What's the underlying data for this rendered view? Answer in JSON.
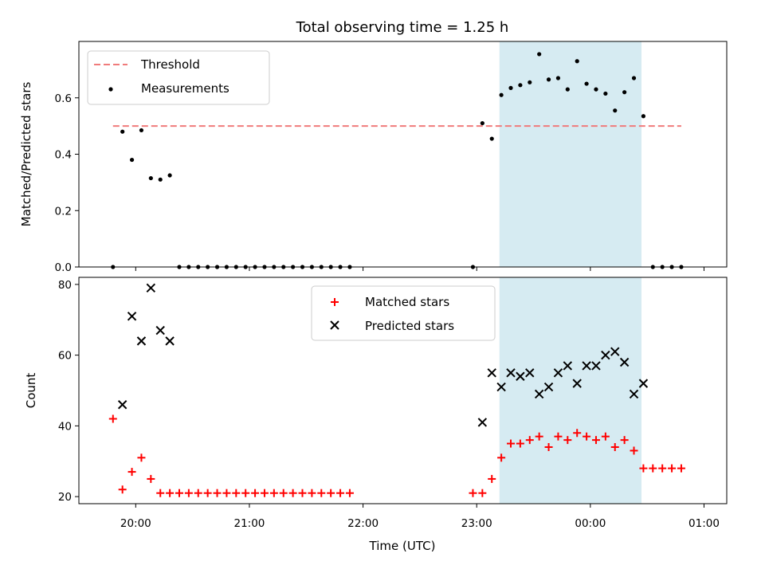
{
  "chart_data": {
    "title": "Total observing time = 1.25 h",
    "xlabel": "Time (UTC)",
    "x_tick_labels": [
      "20:00",
      "21:00",
      "22:00",
      "23:00",
      "00:00",
      "01:00"
    ],
    "observing_window": {
      "start": "23:12",
      "end": "00:27",
      "color": "#add8e6"
    },
    "panels": [
      {
        "type": "scatter",
        "ylabel": "Matched/Predicted stars",
        "ylim": [
          0,
          0.8
        ],
        "y_ticks": [
          "0.0",
          "0.2",
          "0.4",
          "0.6"
        ],
        "legend_position": "top-left",
        "threshold": {
          "label": "Threshold",
          "value": 0.5,
          "x_start": "19:48",
          "x_end": "00:48",
          "color": "#f07b7b"
        },
        "series": [
          {
            "name": "Measurements",
            "marker": "dot",
            "color": "#000000",
            "x": [
              "19:48",
              "19:53",
              "19:58",
              "20:03",
              "20:08",
              "20:13",
              "20:18",
              "20:23",
              "20:28",
              "20:33",
              "20:38",
              "20:43",
              "20:48",
              "20:53",
              "20:58",
              "21:03",
              "21:08",
              "21:13",
              "21:18",
              "21:23",
              "21:28",
              "21:33",
              "21:38",
              "21:43",
              "21:48",
              "21:53",
              "22:58",
              "23:03",
              "23:08",
              "23:13",
              "23:18",
              "23:23",
              "23:28",
              "23:33",
              "23:38",
              "23:43",
              "23:48",
              "23:53",
              "23:58",
              "00:03",
              "00:08",
              "00:13",
              "00:18",
              "00:23",
              "00:28",
              "00:33",
              "00:38",
              "00:43",
              "00:48"
            ],
            "y": [
              0,
              0.48,
              0.38,
              0.485,
              0.315,
              0.31,
              0.325,
              0,
              0,
              0,
              0,
              0,
              0,
              0,
              0,
              0,
              0,
              0,
              0,
              0,
              0,
              0,
              0,
              0,
              0,
              0,
              0,
              0.51,
              0.455,
              0.61,
              0.635,
              0.645,
              0.655,
              0.755,
              0.665,
              0.67,
              0.63,
              0.73,
              0.65,
              0.63,
              0.615,
              0.555,
              0.62,
              0.67,
              0.535,
              0,
              0,
              0,
              0
            ]
          }
        ]
      },
      {
        "type": "scatter",
        "ylabel": "Count",
        "ylim": [
          18,
          82
        ],
        "y_ticks": [
          "20",
          "40",
          "60",
          "80"
        ],
        "legend_position": "upper-center",
        "series": [
          {
            "name": "Matched stars",
            "marker": "plus",
            "color": "#ff0000",
            "x": [
              "19:48",
              "19:53",
              "19:58",
              "20:03",
              "20:08",
              "20:13",
              "20:18",
              "20:23",
              "20:28",
              "20:33",
              "20:38",
              "20:43",
              "20:48",
              "20:53",
              "20:58",
              "21:03",
              "21:08",
              "21:13",
              "21:18",
              "21:23",
              "21:28",
              "21:33",
              "21:38",
              "21:43",
              "21:48",
              "21:53",
              "22:58",
              "23:03",
              "23:08",
              "23:13",
              "23:18",
              "23:23",
              "23:28",
              "23:33",
              "23:38",
              "23:43",
              "23:48",
              "23:53",
              "23:58",
              "00:03",
              "00:08",
              "00:13",
              "00:18",
              "00:23",
              "00:28",
              "00:33",
              "00:38",
              "00:43",
              "00:48"
            ],
            "y": [
              42,
              22,
              27,
              31,
              25,
              21,
              21,
              21,
              21,
              21,
              21,
              21,
              21,
              21,
              21,
              21,
              21,
              21,
              21,
              21,
              21,
              21,
              21,
              21,
              21,
              21,
              21,
              21,
              25,
              31,
              35,
              35,
              36,
              37,
              34,
              37,
              36,
              38,
              37,
              36,
              37,
              34,
              36,
              33,
              28,
              28,
              28,
              28,
              28
            ]
          },
          {
            "name": "Predicted stars",
            "marker": "x",
            "color": "#000000",
            "x": [
              "19:53",
              "19:58",
              "20:03",
              "20:08",
              "20:13",
              "20:18",
              "23:03",
              "23:08",
              "23:13",
              "23:18",
              "23:23",
              "23:28",
              "23:33",
              "23:38",
              "23:43",
              "23:48",
              "23:53",
              "23:58",
              "00:03",
              "00:08",
              "00:13",
              "00:18",
              "00:23",
              "00:28"
            ],
            "y": [
              46,
              71,
              64,
              79,
              67,
              64,
              41,
              55,
              51,
              55,
              54,
              55,
              49,
              51,
              55,
              57,
              52,
              57,
              57,
              60,
              61,
              58,
              49,
              52
            ]
          }
        ]
      }
    ]
  }
}
